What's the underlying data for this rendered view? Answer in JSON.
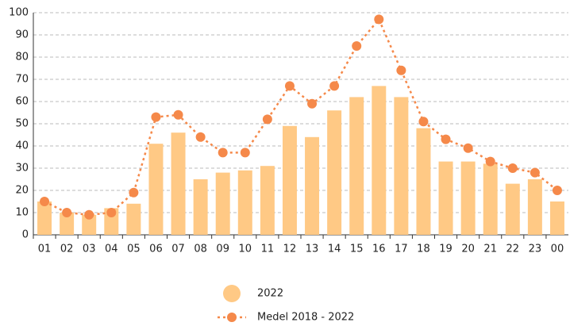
{
  "chart_data": {
    "type": "bar",
    "categories": [
      "01",
      "02",
      "03",
      "04",
      "05",
      "06",
      "07",
      "08",
      "09",
      "10",
      "11",
      "12",
      "13",
      "14",
      "15",
      "16",
      "17",
      "18",
      "19",
      "20",
      "21",
      "22",
      "23",
      "00"
    ],
    "series": [
      {
        "name": "2022",
        "type": "bar",
        "color": "#ffc985",
        "values": [
          15,
          10,
          9,
          12,
          14,
          41,
          46,
          25,
          28,
          29,
          31,
          49,
          44,
          56,
          62,
          67,
          62,
          48,
          33,
          33,
          32,
          23,
          25,
          15
        ]
      },
      {
        "name": "Medel 2018 - 2022",
        "type": "line",
        "color": "#f5894a",
        "values": [
          15,
          10,
          9,
          10,
          19,
          53,
          54,
          44,
          37,
          37,
          52,
          67,
          59,
          67,
          85,
          97,
          74,
          51,
          43,
          39,
          33,
          30,
          28,
          20
        ]
      }
    ],
    "ylim": [
      0,
      100
    ],
    "yticks": [
      0,
      10,
      20,
      30,
      40,
      50,
      60,
      70,
      80,
      90,
      100
    ],
    "grid": true,
    "legend": "bottom"
  }
}
